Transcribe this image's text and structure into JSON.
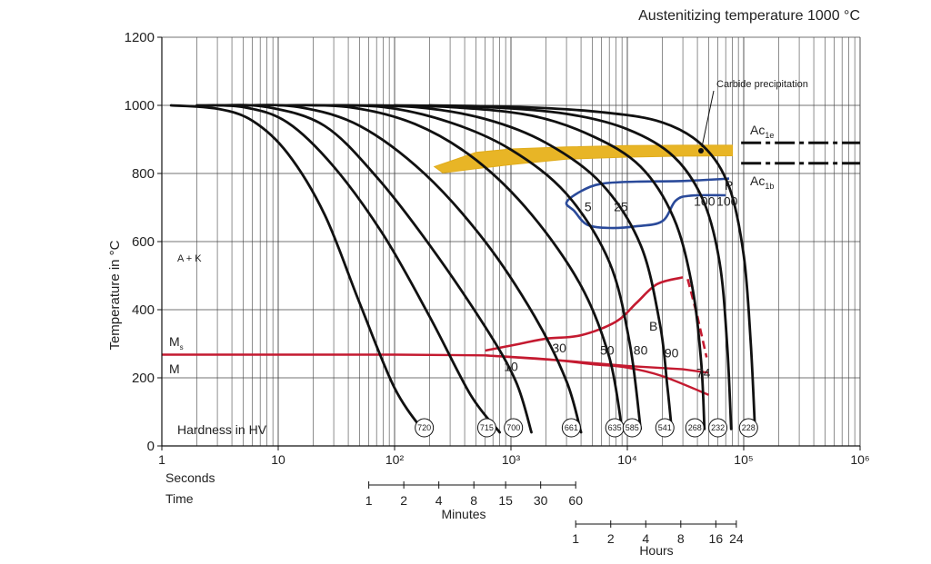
{
  "chart_data": {
    "type": "line",
    "title": "Austenitizing temperature 1000 °C",
    "ylabel": "Temperature in °C",
    "ylim": [
      0,
      1200
    ],
    "yticks": [
      0,
      200,
      400,
      600,
      800,
      1000,
      1200
    ],
    "ytick_labels": [
      "0",
      "200",
      "400",
      "600",
      "800",
      "1000",
      "1200"
    ],
    "xscale": "log",
    "xlim": [
      1,
      1000000
    ],
    "xtick_labels": [
      "1",
      "10",
      "10²",
      "10³",
      "10⁴",
      "10⁵",
      "10⁶"
    ],
    "xtick_values": [
      1,
      10,
      100,
      1000,
      10000,
      100000,
      1000000
    ],
    "time_axes": {
      "seconds_label": "Seconds",
      "time_label": "Time",
      "minutes": {
        "label": "Minutes",
        "ticks": [
          1,
          2,
          4,
          8,
          15,
          30,
          60
        ],
        "tick_labels": [
          "1",
          "2",
          "4",
          "8",
          "15",
          "30",
          "60"
        ]
      },
      "hours": {
        "label": "Hours",
        "ticks": [
          1,
          2,
          4,
          8,
          16,
          24
        ],
        "tick_labels": [
          "1",
          "2",
          "4",
          "8",
          "16",
          "24"
        ]
      }
    },
    "hardness_label": "Hardness in HV",
    "cooling_curves": [
      {
        "hv": "720",
        "points": [
          [
            1.2,
            1000
          ],
          [
            3,
            990
          ],
          [
            6,
            955
          ],
          [
            12,
            860
          ],
          [
            25,
            680
          ],
          [
            50,
            420
          ],
          [
            100,
            170
          ],
          [
            180,
            40
          ]
        ]
      },
      {
        "hv": "715",
        "points": [
          [
            2,
            1000
          ],
          [
            5,
            995
          ],
          [
            12,
            950
          ],
          [
            30,
            820
          ],
          [
            80,
            620
          ],
          [
            200,
            380
          ],
          [
            450,
            150
          ],
          [
            800,
            40
          ]
        ]
      },
      {
        "hv": "700",
        "points": [
          [
            3,
            1000
          ],
          [
            8,
            995
          ],
          [
            25,
            940
          ],
          [
            70,
            790
          ],
          [
            200,
            590
          ],
          [
            600,
            350
          ],
          [
            1100,
            190
          ],
          [
            1500,
            40
          ]
        ]
      },
      {
        "hv": "661",
        "points": [
          [
            5,
            1000
          ],
          [
            15,
            995
          ],
          [
            50,
            940
          ],
          [
            180,
            800
          ],
          [
            600,
            600
          ],
          [
            1600,
            380
          ],
          [
            3000,
            190
          ],
          [
            4000,
            40
          ]
        ]
      },
      {
        "hv": "635",
        "points": [
          [
            10,
            1000
          ],
          [
            40,
            995
          ],
          [
            150,
            945
          ],
          [
            500,
            840
          ],
          [
            1500,
            680
          ],
          [
            4000,
            470
          ],
          [
            7000,
            260
          ],
          [
            9000,
            50
          ]
        ]
      },
      {
        "hv": "585",
        "points": [
          [
            20,
            1000
          ],
          [
            80,
            995
          ],
          [
            300,
            950
          ],
          [
            1000,
            870
          ],
          [
            3000,
            740
          ],
          [
            7000,
            540
          ],
          [
            10500,
            300
          ],
          [
            13000,
            50
          ]
        ]
      },
      {
        "hv": "541",
        "points": [
          [
            30,
            1000
          ],
          [
            150,
            995
          ],
          [
            600,
            960
          ],
          [
            2000,
            890
          ],
          [
            6000,
            770
          ],
          [
            13000,
            590
          ],
          [
            19000,
            360
          ],
          [
            22000,
            180
          ],
          [
            24000,
            50
          ]
        ]
      },
      {
        "hv": "268",
        "points": [
          [
            60,
            1000
          ],
          [
            300,
            995
          ],
          [
            1500,
            970
          ],
          [
            5000,
            910
          ],
          [
            13000,
            820
          ],
          [
            25000,
            670
          ],
          [
            36000,
            470
          ],
          [
            43000,
            250
          ],
          [
            46000,
            50
          ]
        ]
      },
      {
        "hv": "232",
        "points": [
          [
            100,
            1000
          ],
          [
            600,
            995
          ],
          [
            3000,
            975
          ],
          [
            10000,
            930
          ],
          [
            25000,
            850
          ],
          [
            45000,
            720
          ],
          [
            62000,
            540
          ],
          [
            72000,
            300
          ],
          [
            78000,
            50
          ]
        ]
      },
      {
        "hv": "228",
        "points": [
          [
            200,
            1000
          ],
          [
            1200,
            995
          ],
          [
            6000,
            980
          ],
          [
            20000,
            950
          ],
          [
            45000,
            880
          ],
          [
            75000,
            760
          ],
          [
            100000,
            560
          ],
          [
            115000,
            300
          ],
          [
            125000,
            50
          ]
        ]
      }
    ],
    "hv_label_positions_sec": [
      180,
      620,
      1050,
      3300,
      7800,
      11000,
      21000,
      38000,
      60000,
      110000
    ],
    "carbide_band": {
      "label": "Carbide precipitation",
      "upper": [
        [
          220,
          820
        ],
        [
          500,
          862
        ],
        [
          1000,
          872
        ],
        [
          3000,
          878
        ],
        [
          10000,
          882
        ],
        [
          30000,
          883
        ],
        [
          80000,
          883
        ]
      ],
      "lower": [
        [
          80000,
          852
        ],
        [
          30000,
          851
        ],
        [
          10000,
          848
        ],
        [
          3000,
          842
        ],
        [
          1000,
          826
        ],
        [
          450,
          812
        ],
        [
          260,
          802
        ]
      ]
    },
    "lines": {
      "Ac1e": {
        "label": "Ac",
        "sub": "1e",
        "temp": 890
      },
      "Ac1b": {
        "label": "Ac",
        "sub": "1b",
        "temp": 830
      }
    },
    "pearlite_region": {
      "label": "P",
      "boundary": [
        [
          75000,
          785
        ],
        [
          30000,
          778
        ],
        [
          12000,
          776
        ],
        [
          6000,
          770
        ],
        [
          4000,
          748
        ],
        [
          3000,
          715
        ],
        [
          3500,
          690
        ],
        [
          4500,
          650
        ],
        [
          7000,
          640
        ],
        [
          12000,
          645
        ],
        [
          20000,
          660
        ],
        [
          26000,
          720
        ],
        [
          35000,
          735
        ],
        [
          70000,
          736
        ]
      ]
    },
    "bainite_region": {
      "label": "B",
      "boundary": [
        [
          600,
          280
        ],
        [
          1200,
          300
        ],
        [
          2000,
          315
        ],
        [
          4000,
          325
        ],
        [
          8000,
          365
        ],
        [
          12000,
          420
        ],
        [
          18000,
          475
        ],
        [
          30000,
          495
        ]
      ]
    },
    "bainite_dashed_end": [
      [
        33000,
        490
      ],
      [
        40000,
        380
      ],
      [
        48000,
        260
      ]
    ],
    "ms_line": {
      "label_M": "M",
      "label_Ms": "M",
      "ms_sub": "s",
      "temp": 265,
      "points": [
        [
          1,
          268
        ],
        [
          100,
          268
        ],
        [
          600,
          266
        ],
        [
          3000,
          250
        ],
        [
          10000,
          235
        ],
        [
          30000,
          225
        ],
        [
          50000,
          215
        ]
      ]
    },
    "ms_branch": [
      [
        600,
        266
      ],
      [
        2000,
        255
      ],
      [
        5000,
        240
      ],
      [
        10000,
        230
      ],
      [
        20000,
        205
      ],
      [
        50000,
        150
      ]
    ],
    "ms_branch2": [
      [
        12000,
        225
      ],
      [
        25000,
        200
      ],
      [
        50000,
        160
      ]
    ],
    "phase_label": "A + K",
    "percent_labels": [
      {
        "text": "5",
        "sec": 4600,
        "temp": 690
      },
      {
        "text": "25",
        "sec": 8800,
        "temp": 690
      },
      {
        "text": "100",
        "sec": 46000,
        "temp": 705
      },
      {
        "text": "100",
        "sec": 72000,
        "temp": 705
      },
      {
        "text": "30",
        "sec": 2600,
        "temp": 275
      },
      {
        "text": "50",
        "sec": 6700,
        "temp": 268
      },
      {
        "text": "80",
        "sec": 13000,
        "temp": 268
      },
      {
        "text": "90",
        "sec": 24000,
        "temp": 260
      },
      {
        "text": "10",
        "sec": 1000,
        "temp": 220
      },
      {
        "text": "74",
        "sec": 45000,
        "temp": 202
      }
    ]
  }
}
